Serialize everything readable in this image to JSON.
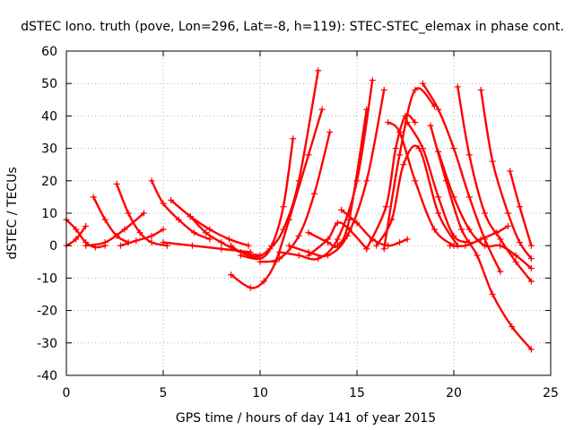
{
  "chart_data": {
    "type": "scatter",
    "title": "dSTEC Iono. truth (pove, Lon=296, Lat=-8, h=119): STEC-STEC_elemax in phase cont.",
    "xlabel": "GPS time / hours of day 141 of year 2015",
    "ylabel": "dSTEC  / TECUs",
    "xlim": [
      0,
      25
    ],
    "ylim": [
      -40,
      60
    ],
    "xticks": [
      0,
      5,
      10,
      15,
      20,
      25
    ],
    "yticks": [
      -40,
      -30,
      -20,
      -10,
      0,
      10,
      20,
      30,
      40,
      50,
      60
    ],
    "grid": true,
    "marker": "plus",
    "color": "#ff0000",
    "series": [
      {
        "x": [
          0.0,
          0.5,
          1.0,
          1.5,
          2.0
        ],
        "y": [
          8,
          5,
          1,
          -0.5,
          0
        ]
      },
      {
        "x": [
          0.0,
          0.5,
          1.0
        ],
        "y": [
          0,
          2,
          6
        ]
      },
      {
        "x": [
          1.4,
          2.0,
          2.6,
          3.2
        ],
        "y": [
          15,
          8,
          3,
          1
        ]
      },
      {
        "x": [
          1.0,
          2.0,
          3.0,
          4.0
        ],
        "y": [
          0,
          1,
          5,
          10
        ]
      },
      {
        "x": [
          2.6,
          3.2,
          3.8,
          4.4,
          5.2
        ],
        "y": [
          19,
          10,
          4,
          1,
          0
        ]
      },
      {
        "x": [
          2.8,
          3.6,
          4.4,
          5.0
        ],
        "y": [
          0,
          1.5,
          3,
          5
        ]
      },
      {
        "x": [
          4.4,
          5.0,
          5.8,
          6.6,
          7.4
        ],
        "y": [
          20,
          13,
          8,
          4,
          2
        ]
      },
      {
        "x": [
          5.0,
          6.5,
          8.0,
          9.5
        ],
        "y": [
          1,
          0,
          -1,
          -2
        ]
      },
      {
        "x": [
          5.4,
          6.4,
          7.4,
          8.4,
          9.4
        ],
        "y": [
          14,
          9,
          5,
          2,
          0
        ]
      },
      {
        "x": [
          6.4,
          7.2,
          8.0,
          9.0,
          10.0
        ],
        "y": [
          9,
          4,
          1,
          -2,
          -3
        ]
      },
      {
        "x": [
          8.5,
          9.0,
          9.8,
          10.5,
          11.2,
          12.0,
          13.0
        ],
        "y": [
          0,
          -2,
          -3.5,
          -1,
          5,
          20,
          54
        ]
      },
      {
        "x": [
          8.5,
          9.5,
          10.2,
          10.8,
          11.5,
          12.5,
          13.2
        ],
        "y": [
          -9,
          -13,
          -11,
          -5,
          8,
          28,
          42
        ]
      },
      {
        "x": [
          9.0,
          10.0,
          10.6,
          11.2,
          11.7
        ],
        "y": [
          -3,
          -4,
          0,
          12,
          33
        ]
      },
      {
        "x": [
          10.0,
          11.0,
          12.0,
          12.8,
          13.6
        ],
        "y": [
          -5,
          -4,
          3,
          16,
          35
        ]
      },
      {
        "x": [
          11.0,
          12.0,
          13.0,
          14.0,
          15.0,
          15.8
        ],
        "y": [
          -2,
          -3,
          -4,
          2,
          20,
          51
        ]
      },
      {
        "x": [
          11.5,
          12.5,
          13.5,
          14.5,
          15.5,
          16.4
        ],
        "y": [
          0,
          -2,
          -3,
          3,
          20,
          48
        ]
      },
      {
        "x": [
          12.5,
          13.5,
          14.0,
          14.6,
          15.5
        ],
        "y": [
          4,
          1,
          0,
          8,
          42
        ]
      },
      {
        "x": [
          12.5,
          13.5,
          14.0,
          14.6,
          15.5
        ],
        "y": [
          -3,
          2,
          7,
          5,
          -1
        ]
      },
      {
        "x": [
          14.2,
          15.0,
          15.8,
          16.6,
          17.2,
          17.6
        ],
        "y": [
          11,
          7,
          2,
          0,
          1,
          2
        ]
      },
      {
        "x": [
          15.5,
          16.5,
          17.0,
          17.5,
          18.0
        ],
        "y": [
          -1,
          12,
          30,
          40,
          38
        ]
      },
      {
        "x": [
          16.0,
          16.8,
          17.4,
          18.2,
          19.2,
          20.2
        ],
        "y": [
          0,
          8,
          25,
          30,
          10,
          0
        ]
      },
      {
        "x": [
          16.6,
          17.2,
          18.0,
          19.0,
          20.0
        ],
        "y": [
          38,
          35,
          20,
          5,
          0
        ]
      },
      {
        "x": [
          16.4,
          17.2,
          18.0,
          19.0
        ],
        "y": [
          -1,
          28,
          48,
          43
        ]
      },
      {
        "x": [
          17.6,
          18.4,
          19.2,
          20.0,
          20.8
        ],
        "y": [
          38,
          30,
          15,
          3,
          1
        ]
      },
      {
        "x": [
          18.4,
          19.2,
          20.0,
          20.8,
          21.6,
          22.4
        ],
        "y": [
          50,
          42,
          30,
          15,
          2,
          -8
        ]
      },
      {
        "x": [
          18.8,
          19.6,
          20.4,
          21.2,
          22.0,
          23.0,
          24.0
        ],
        "y": [
          37,
          20,
          5,
          -3,
          -15,
          -25,
          -32
        ]
      },
      {
        "x": [
          19.2,
          20.0,
          20.8,
          21.6,
          22.4,
          23.2,
          24.0
        ],
        "y": [
          29,
          15,
          5,
          0,
          0,
          -3,
          -7
        ]
      },
      {
        "x": [
          19.8,
          20.6,
          21.4,
          22.2,
          22.8
        ],
        "y": [
          0,
          0,
          2,
          4,
          6
        ]
      },
      {
        "x": [
          20.2,
          20.8,
          21.6,
          22.4,
          23.2,
          24.0
        ],
        "y": [
          49,
          28,
          10,
          2,
          -5,
          -11
        ]
      },
      {
        "x": [
          21.4,
          22.0,
          22.8,
          23.4,
          24.0
        ],
        "y": [
          48,
          26,
          10,
          1,
          -4
        ]
      },
      {
        "x": [
          22.9,
          23.4,
          24.0
        ],
        "y": [
          23,
          12,
          0
        ]
      }
    ]
  }
}
